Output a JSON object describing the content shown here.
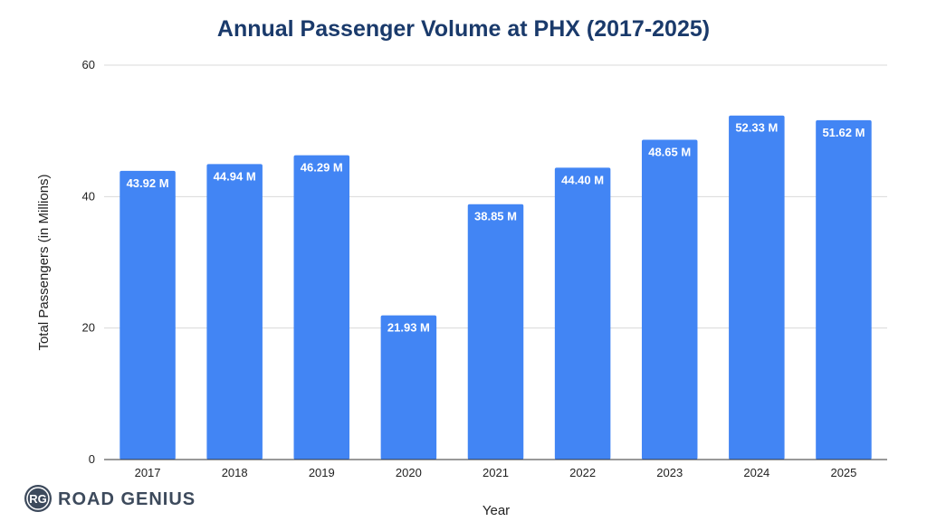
{
  "chart_data": {
    "type": "bar",
    "title": "Annual Passenger Volume at PHX (2017-2025)",
    "xlabel": "Year",
    "ylabel": "Total Passengers (in Millions)",
    "categories": [
      "2017",
      "2018",
      "2019",
      "2020",
      "2021",
      "2022",
      "2023",
      "2024",
      "2025"
    ],
    "values": [
      43.92,
      44.94,
      46.29,
      21.93,
      38.85,
      44.4,
      48.65,
      52.33,
      51.62
    ],
    "data_labels": [
      "43.92 M",
      "44.94 M",
      "46.29 M",
      "21.93 M",
      "38.85 M",
      "44.40 M",
      "48.65 M",
      "52.33 M",
      "51.62 M"
    ],
    "ylim": [
      0,
      60
    ],
    "yticks": [
      0,
      20,
      40,
      60
    ],
    "grid": true,
    "legend": "none"
  },
  "logo": {
    "initials": "RG",
    "text": "ROAD GENIUS"
  },
  "colors": {
    "bar": "#4285f4",
    "title": "#1a3a6b",
    "logo": "#3d4a5c",
    "grid": "#d9d9d9",
    "axis": "#333333"
  }
}
